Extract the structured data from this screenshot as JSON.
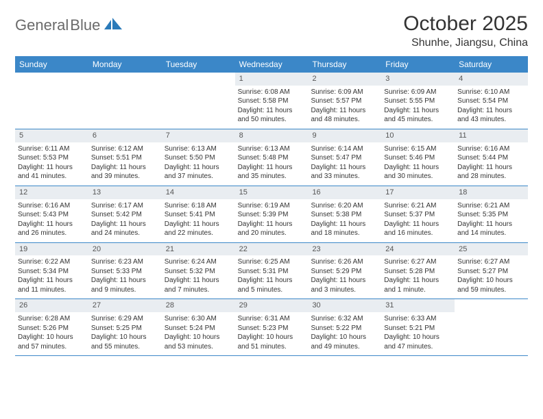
{
  "colors": {
    "header_bg": "#3b87c8",
    "daynum_bg": "#e9edf1",
    "text": "#333333",
    "logo_gray": "#6a6a6a",
    "logo_blue": "#2a7ab9",
    "row_border": "#3b87c8",
    "background": "#ffffff"
  },
  "typography": {
    "title_fontsize": 30,
    "location_fontsize": 16,
    "dayhead_fontsize": 12,
    "daynum_fontsize": 11,
    "body_fontsize": 10
  },
  "logo": {
    "text1": "General",
    "text2": "Blue"
  },
  "title": "October 2025",
  "location": "Shunhe, Jiangsu, China",
  "day_headers": [
    "Sunday",
    "Monday",
    "Tuesday",
    "Wednesday",
    "Thursday",
    "Friday",
    "Saturday"
  ],
  "weeks": [
    [
      {
        "empty": true
      },
      {
        "empty": true
      },
      {
        "empty": true
      },
      {
        "num": "1",
        "sunrise": "Sunrise: 6:08 AM",
        "sunset": "Sunset: 5:58 PM",
        "daylight": "Daylight: 11 hours and 50 minutes."
      },
      {
        "num": "2",
        "sunrise": "Sunrise: 6:09 AM",
        "sunset": "Sunset: 5:57 PM",
        "daylight": "Daylight: 11 hours and 48 minutes."
      },
      {
        "num": "3",
        "sunrise": "Sunrise: 6:09 AM",
        "sunset": "Sunset: 5:55 PM",
        "daylight": "Daylight: 11 hours and 45 minutes."
      },
      {
        "num": "4",
        "sunrise": "Sunrise: 6:10 AM",
        "sunset": "Sunset: 5:54 PM",
        "daylight": "Daylight: 11 hours and 43 minutes."
      }
    ],
    [
      {
        "num": "5",
        "sunrise": "Sunrise: 6:11 AM",
        "sunset": "Sunset: 5:53 PM",
        "daylight": "Daylight: 11 hours and 41 minutes."
      },
      {
        "num": "6",
        "sunrise": "Sunrise: 6:12 AM",
        "sunset": "Sunset: 5:51 PM",
        "daylight": "Daylight: 11 hours and 39 minutes."
      },
      {
        "num": "7",
        "sunrise": "Sunrise: 6:13 AM",
        "sunset": "Sunset: 5:50 PM",
        "daylight": "Daylight: 11 hours and 37 minutes."
      },
      {
        "num": "8",
        "sunrise": "Sunrise: 6:13 AM",
        "sunset": "Sunset: 5:48 PM",
        "daylight": "Daylight: 11 hours and 35 minutes."
      },
      {
        "num": "9",
        "sunrise": "Sunrise: 6:14 AM",
        "sunset": "Sunset: 5:47 PM",
        "daylight": "Daylight: 11 hours and 33 minutes."
      },
      {
        "num": "10",
        "sunrise": "Sunrise: 6:15 AM",
        "sunset": "Sunset: 5:46 PM",
        "daylight": "Daylight: 11 hours and 30 minutes."
      },
      {
        "num": "11",
        "sunrise": "Sunrise: 6:16 AM",
        "sunset": "Sunset: 5:44 PM",
        "daylight": "Daylight: 11 hours and 28 minutes."
      }
    ],
    [
      {
        "num": "12",
        "sunrise": "Sunrise: 6:16 AM",
        "sunset": "Sunset: 5:43 PM",
        "daylight": "Daylight: 11 hours and 26 minutes."
      },
      {
        "num": "13",
        "sunrise": "Sunrise: 6:17 AM",
        "sunset": "Sunset: 5:42 PM",
        "daylight": "Daylight: 11 hours and 24 minutes."
      },
      {
        "num": "14",
        "sunrise": "Sunrise: 6:18 AM",
        "sunset": "Sunset: 5:41 PM",
        "daylight": "Daylight: 11 hours and 22 minutes."
      },
      {
        "num": "15",
        "sunrise": "Sunrise: 6:19 AM",
        "sunset": "Sunset: 5:39 PM",
        "daylight": "Daylight: 11 hours and 20 minutes."
      },
      {
        "num": "16",
        "sunrise": "Sunrise: 6:20 AM",
        "sunset": "Sunset: 5:38 PM",
        "daylight": "Daylight: 11 hours and 18 minutes."
      },
      {
        "num": "17",
        "sunrise": "Sunrise: 6:21 AM",
        "sunset": "Sunset: 5:37 PM",
        "daylight": "Daylight: 11 hours and 16 minutes."
      },
      {
        "num": "18",
        "sunrise": "Sunrise: 6:21 AM",
        "sunset": "Sunset: 5:35 PM",
        "daylight": "Daylight: 11 hours and 14 minutes."
      }
    ],
    [
      {
        "num": "19",
        "sunrise": "Sunrise: 6:22 AM",
        "sunset": "Sunset: 5:34 PM",
        "daylight": "Daylight: 11 hours and 11 minutes."
      },
      {
        "num": "20",
        "sunrise": "Sunrise: 6:23 AM",
        "sunset": "Sunset: 5:33 PM",
        "daylight": "Daylight: 11 hours and 9 minutes."
      },
      {
        "num": "21",
        "sunrise": "Sunrise: 6:24 AM",
        "sunset": "Sunset: 5:32 PM",
        "daylight": "Daylight: 11 hours and 7 minutes."
      },
      {
        "num": "22",
        "sunrise": "Sunrise: 6:25 AM",
        "sunset": "Sunset: 5:31 PM",
        "daylight": "Daylight: 11 hours and 5 minutes."
      },
      {
        "num": "23",
        "sunrise": "Sunrise: 6:26 AM",
        "sunset": "Sunset: 5:29 PM",
        "daylight": "Daylight: 11 hours and 3 minutes."
      },
      {
        "num": "24",
        "sunrise": "Sunrise: 6:27 AM",
        "sunset": "Sunset: 5:28 PM",
        "daylight": "Daylight: 11 hours and 1 minute."
      },
      {
        "num": "25",
        "sunrise": "Sunrise: 6:27 AM",
        "sunset": "Sunset: 5:27 PM",
        "daylight": "Daylight: 10 hours and 59 minutes."
      }
    ],
    [
      {
        "num": "26",
        "sunrise": "Sunrise: 6:28 AM",
        "sunset": "Sunset: 5:26 PM",
        "daylight": "Daylight: 10 hours and 57 minutes."
      },
      {
        "num": "27",
        "sunrise": "Sunrise: 6:29 AM",
        "sunset": "Sunset: 5:25 PM",
        "daylight": "Daylight: 10 hours and 55 minutes."
      },
      {
        "num": "28",
        "sunrise": "Sunrise: 6:30 AM",
        "sunset": "Sunset: 5:24 PM",
        "daylight": "Daylight: 10 hours and 53 minutes."
      },
      {
        "num": "29",
        "sunrise": "Sunrise: 6:31 AM",
        "sunset": "Sunset: 5:23 PM",
        "daylight": "Daylight: 10 hours and 51 minutes."
      },
      {
        "num": "30",
        "sunrise": "Sunrise: 6:32 AM",
        "sunset": "Sunset: 5:22 PM",
        "daylight": "Daylight: 10 hours and 49 minutes."
      },
      {
        "num": "31",
        "sunrise": "Sunrise: 6:33 AM",
        "sunset": "Sunset: 5:21 PM",
        "daylight": "Daylight: 10 hours and 47 minutes."
      },
      {
        "empty": true
      }
    ]
  ]
}
